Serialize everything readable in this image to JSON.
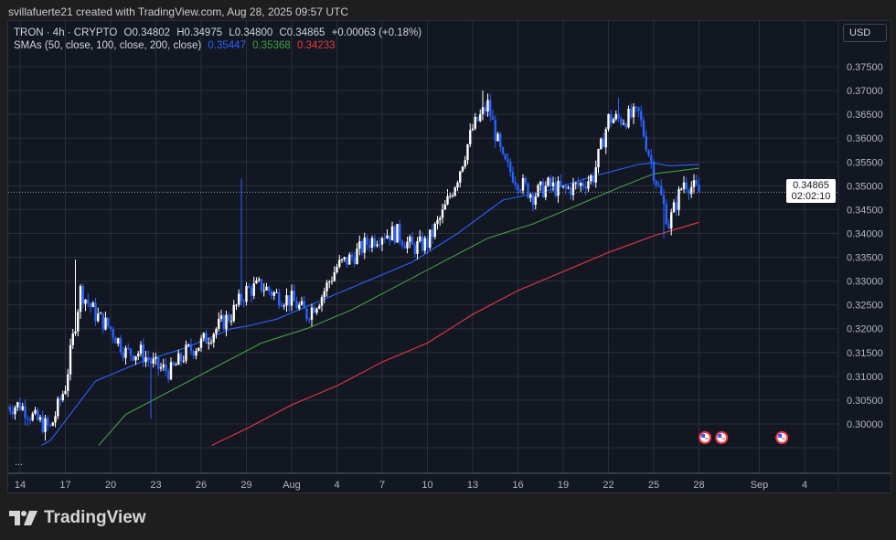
{
  "credit": "svillafuerte21 created with TradingView.com, Aug 28, 2025 09:57 UTC",
  "legend": {
    "symbol": "TRON · 4h · CRYPTO",
    "open": "O0.34802",
    "high": "H0.34975",
    "low": "L0.34800",
    "close": "C0.34865",
    "change": "+0.00063 (+0.18%)",
    "sma_label": "SMAs (50, close, 100, close, 200, close)",
    "sma50": "0.35447",
    "sma100": "0.35368",
    "sma200": "0.34233"
  },
  "currency_button": "USD",
  "more": "...",
  "logo_text": "TradingView",
  "current_price": {
    "price": "0.34865",
    "countdown": "02:02:10"
  },
  "colors": {
    "up": "#ffffff",
    "down": "#2962ff",
    "sma50": "#2962ff",
    "sma100": "#43a047",
    "sma200": "#e53945",
    "bg": "#131722",
    "grid": "#2a2e39"
  },
  "chart_data": {
    "type": "candlestick",
    "interval": "4h",
    "ylim": [
      0.2955,
      0.3775
    ],
    "y_ticks": [
      "0.30000",
      "0.30500",
      "0.31000",
      "0.31500",
      "0.32000",
      "0.32500",
      "0.33000",
      "0.33500",
      "0.34000",
      "0.34500",
      "0.35000",
      "0.35500",
      "0.36000",
      "0.36500",
      "0.37000",
      "0.37500"
    ],
    "x_ticks": [
      {
        "label": "14",
        "day": 1
      },
      {
        "label": "17",
        "day": 4
      },
      {
        "label": "20",
        "day": 7
      },
      {
        "label": "23",
        "day": 10
      },
      {
        "label": "26",
        "day": 13
      },
      {
        "label": "29",
        "day": 16
      },
      {
        "label": "Aug",
        "day": 19
      },
      {
        "label": "4",
        "day": 22
      },
      {
        "label": "7",
        "day": 25
      },
      {
        "label": "10",
        "day": 28
      },
      {
        "label": "13",
        "day": 31
      },
      {
        "label": "16",
        "day": 34
      },
      {
        "label": "19",
        "day": 37
      },
      {
        "label": "22",
        "day": 40
      },
      {
        "label": "25",
        "day": 43
      },
      {
        "label": "28",
        "day": 46
      },
      {
        "label": "Sep",
        "day": 50
      },
      {
        "label": "4",
        "day": 53
      }
    ],
    "day_origin": "Jul 14 = day 1",
    "daily_close": [
      0.3035,
      0.304,
      0.301,
      0.299,
      0.308,
      0.328,
      0.323,
      0.32,
      0.315,
      0.315,
      0.312,
      0.311,
      0.315,
      0.317,
      0.32,
      0.323,
      0.328,
      0.329,
      0.327,
      0.326,
      0.323,
      0.327,
      0.333,
      0.335,
      0.338,
      0.34,
      0.34,
      0.337,
      0.338,
      0.344,
      0.352,
      0.362,
      0.367,
      0.355,
      0.351,
      0.348,
      0.35,
      0.349,
      0.35,
      0.352,
      0.364,
      0.364,
      0.365,
      0.353,
      0.342,
      0.351,
      0.34865
    ],
    "wicks": [
      {
        "day": 5,
        "high": 0.3345
      },
      {
        "day": 16,
        "high": 0.3515
      },
      {
        "day": 32,
        "high": 0.37
      },
      {
        "day": 41,
        "high": 0.3685
      },
      {
        "day": 10,
        "low": 0.301
      },
      {
        "day": 44,
        "low": 0.339
      },
      {
        "day": 3,
        "low": 0.2965
      }
    ],
    "series": [
      {
        "name": "SMA 50",
        "color": "#2962ff",
        "points": [
          [
            2.4,
            0.2955
          ],
          [
            3,
            0.2965
          ],
          [
            6,
            0.309
          ],
          [
            9,
            0.313
          ],
          [
            12,
            0.316
          ],
          [
            15,
            0.32
          ],
          [
            16,
            0.3205
          ],
          [
            18,
            0.322
          ],
          [
            21,
            0.326
          ],
          [
            24,
            0.33
          ],
          [
            27,
            0.334
          ],
          [
            30,
            0.34
          ],
          [
            33,
            0.347
          ],
          [
            36,
            0.349
          ],
          [
            39,
            0.352
          ],
          [
            42,
            0.3545
          ],
          [
            43,
            0.3548
          ],
          [
            44,
            0.3542
          ],
          [
            46,
            0.35447
          ]
        ]
      },
      {
        "name": "SMA 100",
        "color": "#43a047",
        "points": [
          [
            6.2,
            0.2955
          ],
          [
            8,
            0.302
          ],
          [
            11,
            0.307
          ],
          [
            14,
            0.312
          ],
          [
            17,
            0.317
          ],
          [
            20,
            0.32
          ],
          [
            23,
            0.324
          ],
          [
            26,
            0.329
          ],
          [
            29,
            0.334
          ],
          [
            32,
            0.339
          ],
          [
            35,
            0.342
          ],
          [
            38,
            0.346
          ],
          [
            41,
            0.35
          ],
          [
            43,
            0.3525
          ],
          [
            46,
            0.35368
          ]
        ]
      },
      {
        "name": "SMA 200",
        "color": "#e53945",
        "points": [
          [
            13.7,
            0.2955
          ],
          [
            16,
            0.299
          ],
          [
            19,
            0.304
          ],
          [
            22,
            0.308
          ],
          [
            25,
            0.313
          ],
          [
            28,
            0.317
          ],
          [
            31,
            0.323
          ],
          [
            34,
            0.328
          ],
          [
            37,
            0.332
          ],
          [
            40,
            0.336
          ],
          [
            43,
            0.3395
          ],
          [
            46,
            0.34233
          ]
        ]
      }
    ],
    "events": [
      {
        "day": 46.4
      },
      {
        "day": 47.5
      },
      {
        "day": 51.5
      }
    ]
  }
}
